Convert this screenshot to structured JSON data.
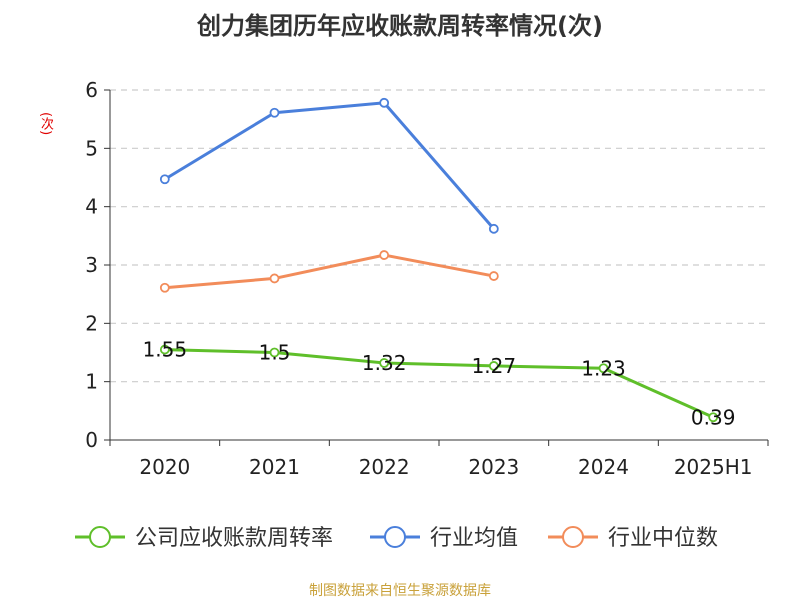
{
  "chart_data": {
    "type": "line",
    "title": "创力集团历年应收账款周转率情况(次)",
    "ylabel": "(次)",
    "categories": [
      "2020",
      "2021",
      "2022",
      "2023",
      "2024",
      "2025H1"
    ],
    "ylim": [
      0,
      6
    ],
    "yticks": [
      0,
      1,
      2,
      3,
      4,
      5,
      6
    ],
    "grid": true,
    "legend_position": "bottom",
    "series": [
      {
        "name": "公司应收账款周转率",
        "color": "#5fbf2a",
        "values": [
          1.55,
          1.5,
          1.32,
          1.27,
          1.23,
          0.39
        ],
        "labels": [
          "1.55",
          "1.5",
          "1.32",
          "1.27",
          "1.23",
          "0.39"
        ]
      },
      {
        "name": "行业均值",
        "color": "#4a7fdb",
        "values": [
          4.47,
          5.61,
          5.78,
          3.62,
          null,
          null
        ]
      },
      {
        "name": "行业中位数",
        "color": "#f28c5a",
        "values": [
          2.61,
          2.77,
          3.17,
          2.81,
          null,
          null
        ]
      }
    ]
  },
  "footer": "制图数据来自恒生聚源数据库"
}
